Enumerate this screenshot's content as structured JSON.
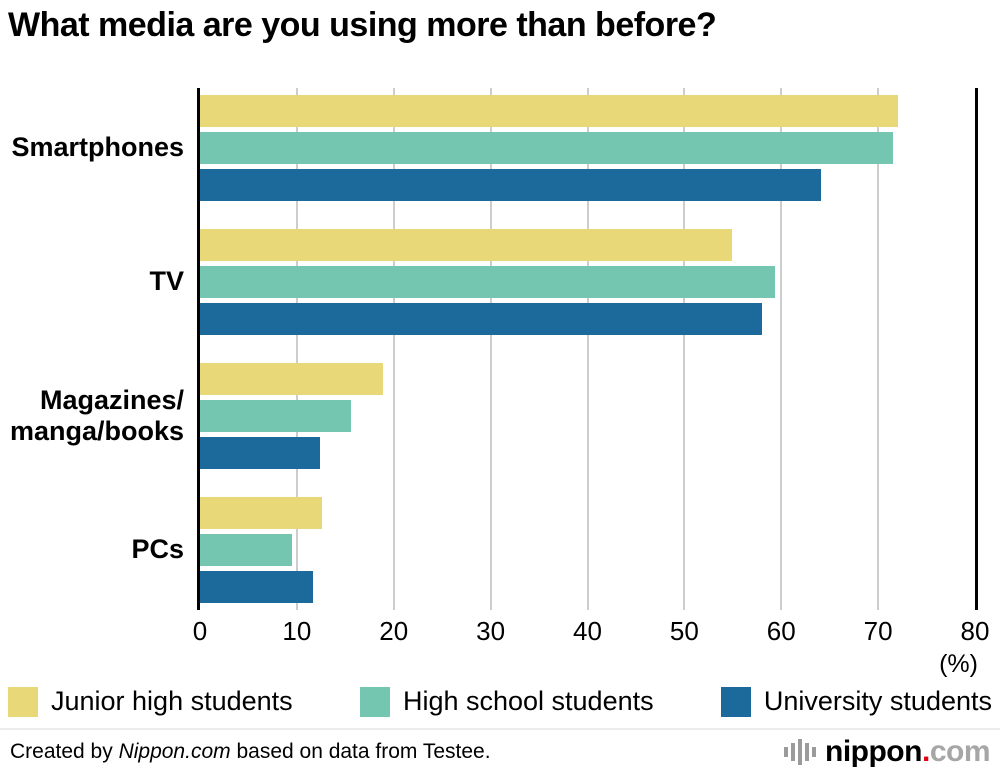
{
  "title": "What media are you using more than before?",
  "chart_data": {
    "type": "bar",
    "orientation": "horizontal",
    "title": "What media are you using more than before?",
    "categories": [
      "Smartphones",
      "TV",
      "Magazines/\nmanga/books",
      "PCs"
    ],
    "series": [
      {
        "name": "Junior high students",
        "color": "#e8d878",
        "values": [
          72.1,
          54.9,
          18.9,
          12.6
        ]
      },
      {
        "name": "High school students",
        "color": "#74c6b1",
        "values": [
          71.5,
          59.4,
          15.6,
          9.5
        ]
      },
      {
        "name": "University students",
        "color": "#1c6a9b",
        "values": [
          64.1,
          58.0,
          12.4,
          11.7
        ]
      }
    ],
    "xlim": [
      0,
      80
    ],
    "xticks": [
      0,
      10,
      20,
      30,
      40,
      50,
      60,
      70,
      80
    ],
    "x_unit_label": "(%)",
    "grid": true,
    "gridline_color": "#cdcdcd",
    "axis_color": "#000000",
    "legend_position": "bottom"
  },
  "footer": {
    "credit_prefix": "Created by ",
    "credit_source": "Nippon.com",
    "credit_suffix": " based on data from Testee.",
    "logo": {
      "nippon": "nippon",
      "dot": ".",
      "com": "com"
    }
  }
}
